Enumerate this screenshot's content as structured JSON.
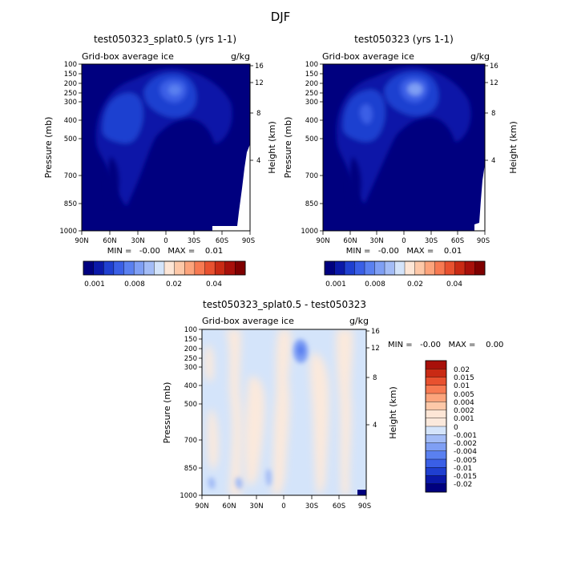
{
  "page_title": "DJF",
  "chart_data": [
    {
      "type": "heatmap",
      "id": "top-left",
      "title": "test050323_splat0.5 (yrs 1-1)",
      "subtitle_left": "Grid-box average ice",
      "subtitle_right": "g/kg",
      "xlabel": "",
      "ylabel": "Pressure (mb)",
      "ylabel_right": "Height (km)",
      "x_ticks": [
        "90N",
        "60N",
        "30N",
        "0",
        "30S",
        "60S",
        "90S"
      ],
      "y_ticks": [
        "100",
        "150",
        "200",
        "250",
        "300",
        "400",
        "500",
        "700",
        "850",
        "1000"
      ],
      "y_right_ticks": [
        "16",
        "12",
        "8",
        "4"
      ],
      "min_max_text": "MIN =   -0.00   MAX =    0.01",
      "colorbar_labels": [
        "0.001",
        "0.008",
        "0.02",
        "0.04"
      ],
      "colorbar_colors": [
        "#00007f",
        "#0a18a8",
        "#1f3fd0",
        "#3a5fe6",
        "#5a80f0",
        "#7f9ff4",
        "#a3bcf6",
        "#d4e4fa",
        "#fde6d6",
        "#fdc8a8",
        "#fca47c",
        "#f77a52",
        "#e8512f",
        "#c92a14",
        "#a8100a",
        "#7f0000"
      ]
    },
    {
      "type": "heatmap",
      "id": "top-right",
      "title": "test050323 (yrs 1-1)",
      "subtitle_left": "Grid-box average ice",
      "subtitle_right": "g/kg",
      "xlabel": "",
      "ylabel": "Pressure (mb)",
      "ylabel_right": "Height (km)",
      "x_ticks": [
        "90N",
        "60N",
        "30N",
        "0",
        "30S",
        "60S",
        "90S"
      ],
      "y_ticks": [
        "100",
        "150",
        "200",
        "250",
        "300",
        "400",
        "500",
        "700",
        "850",
        "1000"
      ],
      "y_right_ticks": [
        "16",
        "12",
        "8",
        "4"
      ],
      "min_max_text": "MIN =   -0.00   MAX =    0.01",
      "colorbar_labels": [
        "0.001",
        "0.008",
        "0.02",
        "0.04"
      ],
      "colorbar_colors": [
        "#00007f",
        "#0a18a8",
        "#1f3fd0",
        "#3a5fe6",
        "#5a80f0",
        "#7f9ff4",
        "#a3bcf6",
        "#d4e4fa",
        "#fde6d6",
        "#fdc8a8",
        "#fca47c",
        "#f77a52",
        "#e8512f",
        "#c92a14",
        "#a8100a",
        "#7f0000"
      ]
    },
    {
      "type": "heatmap",
      "id": "bottom",
      "title": "test050323_splat0.5 - test050323",
      "subtitle_left": "Grid-box average ice",
      "subtitle_right": "g/kg",
      "xlabel": "",
      "ylabel": "Pressure (mb)",
      "ylabel_right": "Height (km)",
      "x_ticks": [
        "90N",
        "60N",
        "30N",
        "0",
        "30S",
        "60S",
        "90S"
      ],
      "y_ticks": [
        "100",
        "150",
        "200",
        "250",
        "300",
        "400",
        "500",
        "700",
        "850",
        "1000"
      ],
      "y_right_ticks": [
        "16",
        "12",
        "8",
        "4"
      ],
      "min_max_text": "MIN =   -0.00   MAX =    0.00",
      "colorbar_labels": [
        "0.02",
        "0.015",
        "0.01",
        "0.005",
        "0.004",
        "0.002",
        "0.001",
        "0",
        "-0.001",
        "-0.002",
        "-0.004",
        "-0.005",
        "-0.01",
        "-0.015",
        "-0.02"
      ],
      "colorbar_colors": [
        "#a8100a",
        "#c92a14",
        "#e8512f",
        "#f77a52",
        "#fca47c",
        "#fdc8a8",
        "#fde6d6",
        "#fbe9dc",
        "#d4e4fa",
        "#a3bcf6",
        "#7f9ff4",
        "#5a80f0",
        "#3a5fe6",
        "#1f3fd0",
        "#0a18a8",
        "#00007f"
      ]
    }
  ]
}
